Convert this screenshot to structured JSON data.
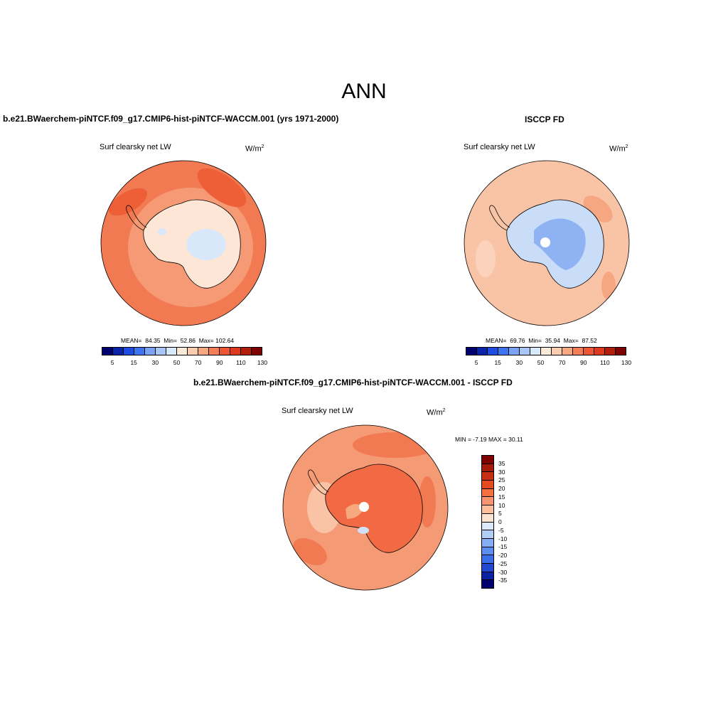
{
  "figure": {
    "season": "ANN"
  },
  "panels": {
    "model": {
      "title": "b.e21.BWaerchem-piNTCF.f09_g17.CMIP6-hist-piNTCF-WACCM.001 (yrs 1971-2000)",
      "variable": "Surf clearsky net LW",
      "units_base": "W/m",
      "units_exp": "2",
      "mean_label": "MEAN=",
      "mean": "84.35",
      "min_label": "Min=",
      "min": "52.86",
      "max_label": "Max=",
      "max": "102.64"
    },
    "obs": {
      "title": "ISCCP FD",
      "variable": "Surf clearsky net LW",
      "units_base": "W/m",
      "units_exp": "2",
      "mean_label": "MEAN=",
      "mean": "69.76",
      "min_label": "Min=",
      "min": "35.94",
      "max_label": "Max=",
      "max": "87.52"
    },
    "diff": {
      "title": "b.e21.BWaerchem-piNTCF.f09_g17.CMIP6-hist-piNTCF-WACCM.001 - ISCCP FD",
      "variable": "Surf clearsky net LW",
      "units_base": "W/m",
      "units_exp": "2",
      "minmax_text": "MIN =  -7.19 MAX =  30.11"
    }
  },
  "colorbars": {
    "abs_labels": [
      "5",
      "15",
      "30",
      "50",
      "70",
      "90",
      "110",
      "130"
    ],
    "abs_colors": [
      "#00006e",
      "#0b23a8",
      "#1d4ce0",
      "#3c74f2",
      "#7aa3f5",
      "#a8c6f7",
      "#d8e9fb",
      "#fdebd9",
      "#fbcdb0",
      "#f8a87f",
      "#f47e56",
      "#ee5633",
      "#db3a1c",
      "#b31d0c",
      "#7f0000"
    ],
    "diff_labels": [
      "35",
      "30",
      "25",
      "20",
      "15",
      "10",
      "5",
      "0",
      "-5",
      "-10",
      "-15",
      "-20",
      "-25",
      "-30",
      "-35"
    ],
    "diff_colors": [
      "#7f0000",
      "#a51b0a",
      "#c82e12",
      "#e64a20",
      "#f47040",
      "#f89570",
      "#fbbf9c",
      "#fde4d0",
      "#dbe9fb",
      "#b2cdf6",
      "#86aef3",
      "#5a8ef0",
      "#3a6ee8",
      "#2048d0",
      "#0c22a0",
      "#00006e"
    ]
  },
  "colors": {
    "ocean_model": "#f27a52",
    "land_model": "#fde6d6",
    "ocean_obs": "#f9c3a6",
    "land_obs": "#c9dcf8",
    "ocean_diff": "#f49a74",
    "land_diff": "#f26a44"
  }
}
